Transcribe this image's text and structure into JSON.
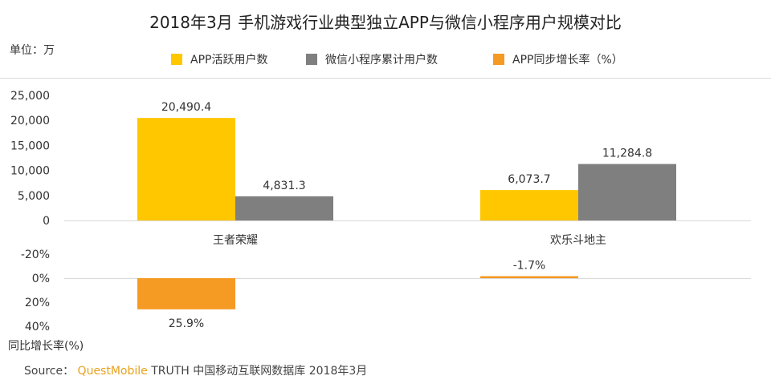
{
  "title": "2018年3月 手机游戏行业典型独立APP与微信小程序用户规模对比",
  "unit_label": "单位：万",
  "legend": [
    {
      "label": "APP活跃用户数",
      "color": "#ffc700"
    },
    {
      "label": "微信小程序累计用户数",
      "color": "#7f7f7f"
    },
    {
      "label": "APP同步增长率（%）",
      "color": "#f59a23"
    }
  ],
  "growth_axis_label": "同比增长率(%)",
  "source": {
    "prefix": "Source：",
    "brand": "QuestMobile",
    "rest": "TRUTH 中国移动互联网数据库 2018年3月"
  },
  "chart_data": [
    {
      "type": "bar",
      "categories": [
        "王者荣耀",
        "欢乐斗地主"
      ],
      "series": [
        {
          "name": "APP活跃用户数",
          "values": [
            20490.4,
            6073.7
          ],
          "labels": [
            "20,490.4",
            "6,073.7"
          ],
          "color": "#ffc700"
        },
        {
          "name": "微信小程序累计用户数",
          "values": [
            4831.3,
            11284.8
          ],
          "labels": [
            "4,831.3",
            "11,284.8"
          ],
          "color": "#7f7f7f"
        }
      ],
      "ylim": [
        0,
        25000
      ],
      "yticks": [
        0,
        5000,
        10000,
        15000,
        20000,
        25000
      ],
      "ytick_labels": [
        "0",
        "5,000",
        "10,000",
        "15,000",
        "20,000",
        "25,000"
      ]
    },
    {
      "type": "bar",
      "categories": [
        "王者荣耀",
        "欢乐斗地主"
      ],
      "series": [
        {
          "name": "APP同步增长率（%）",
          "values": [
            25.9,
            -1.7
          ],
          "labels": [
            "25.9%",
            "-1.7%"
          ],
          "color": "#f59a23"
        }
      ],
      "ylim": [
        -20,
        40
      ],
      "y_axis_inverted": true,
      "yticks": [
        -20,
        0,
        20,
        40
      ],
      "ytick_labels": [
        "-20%",
        "0%",
        "20%",
        "40%"
      ]
    }
  ]
}
